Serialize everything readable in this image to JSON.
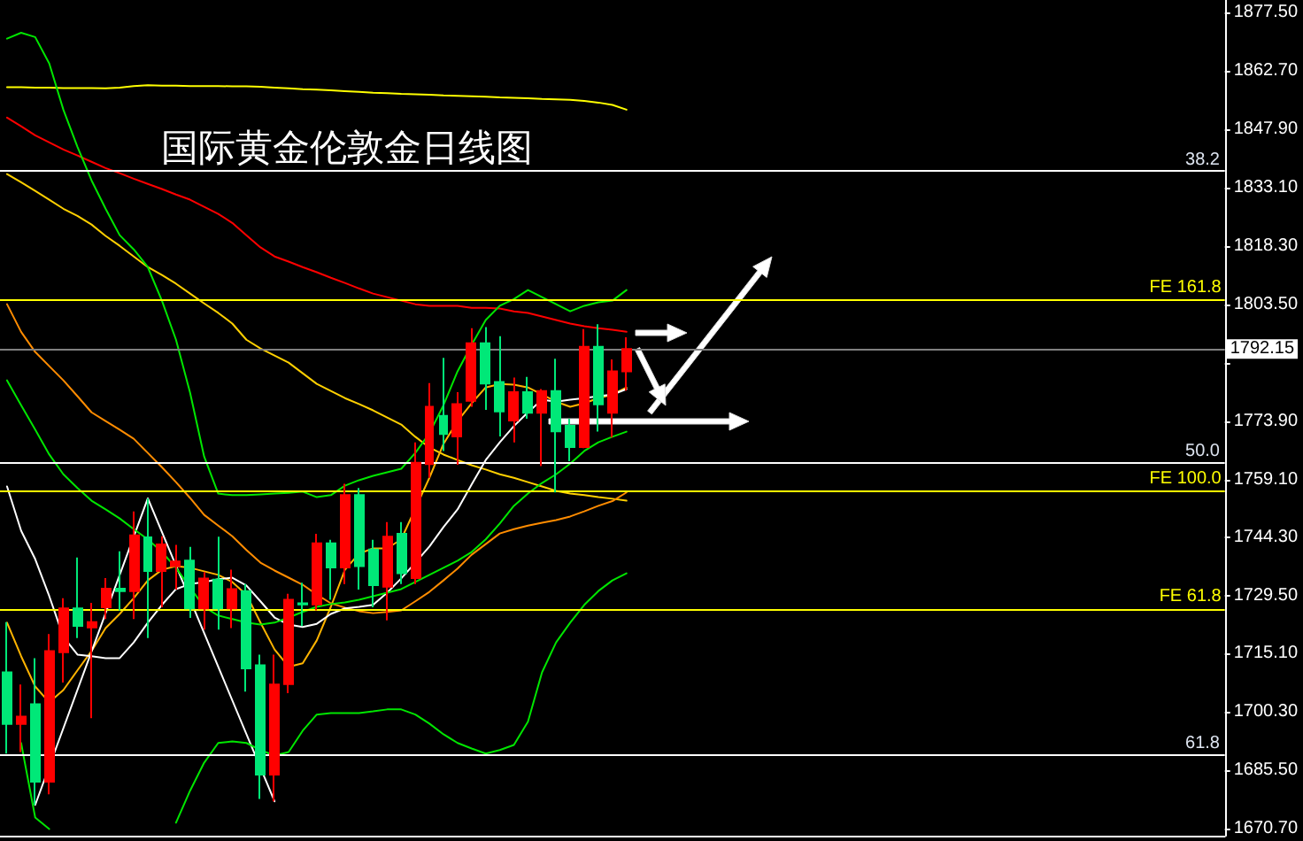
{
  "chart_data": {
    "type": "candlestick",
    "title": "国际黄金伦敦金日线图",
    "categories": [
      null,
      null,
      null,
      null,
      null,
      null,
      null,
      null,
      null,
      null,
      null,
      null,
      null,
      null,
      null,
      null,
      null,
      null,
      null,
      null,
      null,
      null,
      null,
      null,
      null,
      null,
      null,
      null,
      null,
      null,
      null,
      null,
      null,
      null,
      null,
      null,
      null,
      null,
      null,
      null,
      null,
      null,
      null,
      null,
      null,
      null,
      null,
      null,
      null,
      null,
      null,
      null,
      null,
      null,
      null,
      null,
      null,
      null,
      null,
      null,
      null,
      null,
      null,
      null,
      null,
      null,
      null,
      null,
      null,
      null,
      null,
      null,
      null,
      null,
      null,
      null,
      null,
      null,
      null,
      null,
      null,
      null,
      null,
      null,
      null,
      null,
      null
    ],
    "ohlc": [
      [
        1710.2,
        1722.9,
        1689.6,
        1697.1
      ],
      [
        1697.1,
        1707.1,
        1690.0,
        1699.0
      ],
      [
        1702.1,
        1713.8,
        1676.6,
        1682.5
      ],
      [
        1682.5,
        1719.9,
        1679.3,
        1715.6
      ],
      [
        1715.3,
        1729.0,
        1707.6,
        1726.4
      ],
      [
        1726.4,
        1739.3,
        1718.9,
        1722.0
      ],
      [
        1721.6,
        1727.8,
        1698.6,
        1722.9
      ],
      [
        1726.7,
        1734.1,
        1723.7,
        1731.4
      ],
      [
        1731.4,
        1740.9,
        1725.9,
        1730.8
      ],
      [
        1730.8,
        1751.0,
        1723.7,
        1744.9
      ],
      [
        1744.4,
        1754.3,
        1718.9,
        1735.9
      ],
      [
        1735.9,
        1744.7,
        1726.7,
        1742.6
      ],
      [
        1737.1,
        1742.5,
        1731.2,
        1738.3
      ],
      [
        1738.5,
        1742.0,
        1724.0,
        1726.4
      ],
      [
        1726.4,
        1735.6,
        1721.0,
        1734.0
      ],
      [
        1733.7,
        1744.6,
        1721.0,
        1726.4
      ],
      [
        1726.4,
        1736.2,
        1721.4,
        1731.3
      ],
      [
        1730.8,
        1732.6,
        1705.3,
        1711.2
      ],
      [
        1712.0,
        1714.7,
        1678.1,
        1684.3
      ],
      [
        1684.3,
        1714.7,
        1677.5,
        1707.1
      ],
      [
        1707.2,
        1730.1,
        1704.9,
        1728.6
      ],
      [
        1727.7,
        1732.9,
        1721.9,
        1727.4
      ],
      [
        1727.4,
        1745.3,
        1725.9,
        1742.9
      ],
      [
        1742.9,
        1743.8,
        1728.6,
        1736.8
      ],
      [
        1736.8,
        1758.0,
        1732.6,
        1755.1
      ],
      [
        1755.1,
        1756.9,
        1731.2,
        1737.1
      ],
      [
        1741.3,
        1743.8,
        1726.7,
        1732.3
      ],
      [
        1731.9,
        1748.3,
        1723.4,
        1744.6
      ],
      [
        1745.3,
        1748.3,
        1732.6,
        1735.3
      ],
      [
        1734.1,
        1768.5,
        1732.6,
        1763.3
      ],
      [
        1763.0,
        1783.5,
        1759.5,
        1777.5
      ],
      [
        1775.2,
        1789.9,
        1766.3,
        1770.6
      ],
      [
        1770.0,
        1781.2,
        1762.8,
        1778.2
      ],
      [
        1779.0,
        1797.4,
        1777.5,
        1793.6
      ],
      [
        1793.6,
        1797.7,
        1776.7,
        1783.4
      ],
      [
        1783.8,
        1795.4,
        1770.0,
        1776.3
      ],
      [
        1774.0,
        1784.9,
        1768.5,
        1781.2
      ],
      [
        1781.2,
        1785.1,
        1774.5,
        1776.0
      ],
      [
        1776.0,
        1782.0,
        1762.5,
        1781.5
      ],
      [
        1781.5,
        1789.7,
        1755.8,
        1771.3
      ],
      [
        1772.7,
        1774.5,
        1763.7,
        1767.3
      ],
      [
        1767.3,
        1797.2,
        1767.0,
        1792.7
      ],
      [
        1792.7,
        1798.4,
        1771.2,
        1778.1
      ],
      [
        1776.0,
        1789.5,
        1769.7,
        1786.5
      ],
      [
        1786.5,
        1795.1,
        1781.6,
        1792.15
      ],
      null,
      null,
      null,
      null,
      null,
      null,
      null,
      null,
      null,
      null,
      null,
      null,
      null,
      null,
      null,
      null,
      null,
      null,
      null,
      null,
      null,
      null,
      null,
      null,
      null,
      null,
      null,
      null,
      null,
      null,
      null,
      null,
      null,
      null,
      null,
      null,
      null,
      null,
      null,
      null,
      null,
      null
    ],
    "colors": [
      "#00e878",
      "#ff0000",
      "#00e878",
      "#ff0000",
      "#ff0000",
      "#00e878",
      "#ff0000",
      "#ff0000",
      "#00e878",
      "#ff0000",
      "#00e878",
      "#ff0000",
      "#ff0000",
      "#00e878",
      "#ff0000",
      "#00e878",
      "#ff0000",
      "#00e878",
      "#00e878",
      "#ff0000",
      "#ff0000",
      "#00e878",
      "#ff0000",
      "#00e878",
      "#ff0000",
      "#00e878",
      "#00e878",
      "#ff0000",
      "#00e878",
      "#ff0000",
      "#ff0000",
      "#00e878",
      "#ff0000",
      "#ff0000",
      "#00e878",
      "#00e878",
      "#ff0000",
      "#00e878",
      "#ff0000",
      "#00e878",
      "#00e878",
      "#ff0000",
      "#00e878",
      "#ff0000",
      "#ff0000",
      null,
      null,
      null,
      null,
      null,
      null,
      null,
      null,
      null,
      null,
      null,
      null,
      null,
      null,
      null,
      null,
      null,
      null,
      null,
      null,
      null,
      null,
      null,
      null,
      null,
      null,
      null,
      null,
      null,
      null,
      null,
      null,
      null,
      null,
      null,
      null,
      null,
      null,
      null,
      null,
      null,
      null
    ],
    "series": [
      {
        "type": "line",
        "color": "#ffff00",
        "values": [
          1858.5,
          1858.5,
          1858.4,
          1858.4,
          1858.3,
          1858.3,
          1858.3,
          1858.2,
          1858.4,
          1858.8,
          1859.0,
          1858.9,
          1858.9,
          1858.8,
          1858.8,
          1858.8,
          1858.7,
          1858.7,
          1858.6,
          1858.4,
          1858.2,
          1858.0,
          1857.9,
          1857.7,
          1857.5,
          1857.3,
          1857.1,
          1857.0,
          1856.8,
          1856.7,
          1856.6,
          1856.4,
          1856.3,
          1856.2,
          1856.1,
          1855.9,
          1855.8,
          1855.7,
          1855.5,
          1855.4,
          1855.3,
          1855.0,
          1854.6,
          1854.0,
          1852.8,
          null,
          null,
          null,
          null,
          null,
          null,
          null,
          null,
          null,
          null,
          null,
          null,
          null,
          null,
          null,
          null,
          null,
          null,
          null,
          null,
          null,
          null,
          null,
          null,
          null,
          null,
          null,
          null,
          null,
          null,
          null,
          null,
          null,
          null,
          null,
          null,
          null,
          null,
          null,
          null,
          null,
          null
        ]
      },
      {
        "type": "line",
        "color": "#ff0000",
        "values": [
          1850.8,
          1848.6,
          1846.3,
          1844.5,
          1842.7,
          1841.2,
          1839.6,
          1838.0,
          1836.7,
          1835.3,
          1834.0,
          1832.7,
          1831.3,
          1830.0,
          1828.2,
          1826.4,
          1824.1,
          1821.0,
          1817.9,
          1815.6,
          1814.3,
          1812.9,
          1811.6,
          1810.2,
          1808.9,
          1807.5,
          1806.2,
          1805.3,
          1804.4,
          1803.5,
          1803.1,
          1803.1,
          1803.1,
          1802.6,
          1802.6,
          1802.4,
          1801.7,
          1801.3,
          1800.4,
          1799.5,
          1798.6,
          1797.9,
          1797.4,
          1797.0,
          1796.5,
          null,
          null,
          null,
          null,
          null,
          null,
          null,
          null,
          null,
          null,
          null,
          null,
          null,
          null,
          null,
          null,
          null,
          null,
          null,
          null,
          null,
          null,
          null,
          null,
          null,
          null,
          null,
          null,
          null,
          null,
          null,
          null,
          null,
          null,
          null,
          null,
          null,
          null,
          null,
          null,
          null,
          null
        ]
      },
      {
        "type": "line",
        "color": "#ffd000",
        "values": [
          1836.5,
          1834.4,
          1832.2,
          1830.0,
          1827.7,
          1825.9,
          1823.7,
          1820.8,
          1818.3,
          1815.6,
          1812.9,
          1810.9,
          1808.7,
          1806.2,
          1803.7,
          1801.3,
          1798.6,
          1794.5,
          1792.3,
          1790.5,
          1788.7,
          1786.0,
          1783.3,
          1781.5,
          1779.7,
          1778.2,
          1776.6,
          1774.8,
          1773.0,
          1769.9,
          1767.2,
          1765.4,
          1764.0,
          1762.7,
          1761.6,
          1760.4,
          1759.5,
          1758.4,
          1757.3,
          1756.2,
          1755.5,
          1755.1,
          1754.6,
          1754.2,
          1753.7,
          null,
          null,
          null,
          null,
          null,
          null,
          null,
          null,
          null,
          null,
          null,
          null,
          null,
          null,
          null,
          null,
          null,
          null,
          null,
          null,
          null,
          null,
          null,
          null,
          null,
          null,
          null,
          null,
          null,
          null,
          null,
          null,
          null,
          null,
          null,
          null,
          null,
          null,
          null,
          null,
          null,
          null
        ]
      },
      {
        "type": "line",
        "color": "#ff8c00",
        "values": [
          1803.5,
          1796.5,
          1791.4,
          1787.8,
          1784.2,
          1780.2,
          1776.1,
          1773.9,
          1771.7,
          1769.4,
          1765.8,
          1762.2,
          1758.4,
          1754.4,
          1750.1,
          1747.4,
          1744.7,
          1741.2,
          1738.0,
          1736.0,
          1734.2,
          1732.4,
          1729.9,
          1727.7,
          1726.6,
          1725.7,
          1725.2,
          1725.5,
          1725.9,
          1728.2,
          1730.6,
          1733.5,
          1736.5,
          1740.0,
          1742.7,
          1745.4,
          1746.5,
          1747.4,
          1748.1,
          1748.8,
          1749.7,
          1751.0,
          1752.4,
          1753.6,
          1755.8,
          null,
          null,
          null,
          null,
          null,
          null,
          null,
          null,
          null,
          null,
          null,
          null,
          null,
          null,
          null,
          null,
          null,
          null,
          null,
          null,
          null,
          null,
          null,
          null,
          null,
          null,
          null,
          null,
          null,
          null,
          null,
          null,
          null,
          null,
          null,
          null,
          null,
          null,
          null,
          null,
          null,
          null
        ]
      },
      {
        "type": "line",
        "color": "#ffb400",
        "values": [
          1722.8,
          1714.3,
          1706.6,
          1702.6,
          1705.7,
          1710.7,
          1715.6,
          1721.4,
          1725.0,
          1729.0,
          1733.5,
          1736.2,
          1737.1,
          1736.7,
          1735.8,
          1734.9,
          1733.1,
          1729.9,
          1722.8,
          1716.0,
          1711.6,
          1712.5,
          1718.3,
          1726.8,
          1736.2,
          1740.3,
          1741.6,
          1741.6,
          1743.9,
          null,
          1759.5,
          1768.1,
          1773.9,
          1778.4,
          1782.4,
          1783.3,
          1783.1,
          1782.4,
          1780.6,
          1778.8,
          1777.5,
          1778.4,
          1779.7,
          1780.6,
          1782.4,
          null,
          null,
          null,
          null,
          null,
          null,
          null,
          null,
          null,
          null,
          null,
          null,
          null,
          null,
          null,
          null,
          null,
          null,
          null,
          null,
          null,
          null,
          null,
          null,
          null,
          null,
          null,
          null,
          null,
          null,
          null,
          null,
          null,
          null,
          null,
          null,
          null,
          null,
          null,
          null,
          null,
          null
        ]
      },
      {
        "type": "line",
        "color": "#ffffff",
        "values": [
          1757.3,
          1746.1,
          1738.9,
          1729.5,
          1719.2,
          1714.7,
          1714.3,
          1713.8,
          1713.8,
          1717.8,
          1722.8,
          1727.3,
          1731.3,
          1732.6,
          1733.1,
          1733.8,
          1734.2,
          1732.2,
          1728.2,
          1724.1,
          1722.3,
          1721.7,
          1722.5,
          1725.0,
          1726.4,
          1726.8,
          1727.3,
          1730.4,
          1734.0,
          1738.0,
          1742.1,
          1747.0,
          1751.5,
          1757.8,
          1764.0,
          1768.5,
          1772.6,
          1776.1,
          1779.3,
          1778.8,
          1779.3,
          1779.7,
          1780.2,
          1780.6,
          1782.0,
          null,
          null,
          null,
          null,
          null,
          null,
          null,
          null,
          null,
          null,
          null,
          null,
          null,
          null,
          null,
          null,
          null,
          null,
          null,
          null,
          null,
          null,
          null,
          null,
          null,
          null,
          null,
          null,
          null,
          null,
          null,
          null,
          null,
          null,
          null,
          null,
          null,
          null,
          null,
          null,
          null,
          null
        ]
      },
      {
        "type": "line",
        "color": "#ffffff",
        "values": [
          null,
          null,
          1676.6,
          null,
          null,
          null,
          null,
          null,
          null,
          null,
          1754.3,
          null,
          null,
          null,
          null,
          null,
          null,
          null,
          null,
          1677.5,
          null,
          null,
          null,
          null,
          null,
          null,
          null,
          null,
          null,
          null,
          null,
          null,
          null,
          null,
          null,
          null,
          null,
          null,
          null,
          null,
          null,
          null,
          null,
          null,
          null,
          null,
          null,
          null,
          null,
          null,
          null,
          null,
          null,
          null,
          null,
          null,
          null,
          null,
          null,
          null,
          null,
          null,
          null,
          null,
          null,
          null,
          null,
          null,
          null,
          null,
          null,
          null,
          null,
          null,
          null,
          null,
          null,
          null,
          null,
          null,
          null,
          null,
          null,
          null,
          null,
          null,
          null
        ]
      },
      {
        "type": "line",
        "color": "#00e600",
        "values": [
          1870.8,
          1872.3,
          1871.2,
          1864.5,
          1852.8,
          1843.4,
          1834.9,
          1827.7,
          1821.0,
          1817.4,
          1812.9,
          1804.4,
          1794.5,
          1781.1,
          1764.9,
          1755.5,
          1755.1,
          1755.1,
          1755.3,
          1755.5,
          1755.7,
          1756.0,
          1754.6,
          1755.1,
          1757.5,
          1758.9,
          1760.0,
          1760.9,
          1761.8,
          1765.8,
          1770.8,
          1777.9,
          1786.5,
          1793.2,
          1799.5,
          1803.1,
          1804.8,
          1807.1,
          1805.3,
          1803.5,
          1801.7,
          1803.1,
          1804.0,
          1804.4,
          1807.1,
          null,
          null,
          null,
          null,
          null,
          null,
          null,
          null,
          null,
          null,
          null,
          null,
          null,
          null,
          null,
          null,
          null,
          null,
          null,
          null,
          null,
          null,
          null,
          null,
          null,
          null,
          null,
          null,
          null,
          null,
          null,
          null,
          null,
          null,
          null,
          null,
          null,
          null,
          null,
          null,
          null,
          null
        ]
      },
      {
        "type": "line",
        "color": "#00e600",
        "values": [
          1784.2,
          1777.9,
          1771.7,
          1765.4,
          1760.4,
          1756.9,
          1753.7,
          1751.5,
          1749.2,
          1746.5,
          1743.9,
          1740.7,
          1736.7,
          1731.7,
          1726.8,
          1724.6,
          1723.7,
          1722.8,
          1722.3,
          1722.8,
          1724.1,
          1725.5,
          1726.8,
          1727.5,
          1727.9,
          1728.6,
          1729.5,
          1730.4,
          1731.3,
          1733.1,
          1734.9,
          1736.7,
          1738.5,
          1740.7,
          1743.9,
          1747.9,
          1752.4,
          1755.5,
          1758.2,
          1760.4,
          1763.1,
          1766.3,
          1768.5,
          1769.9,
          1771.2,
          null,
          null,
          null,
          null,
          null,
          null,
          null,
          null,
          null,
          null,
          null,
          null,
          null,
          null,
          null,
          null,
          null,
          null,
          null,
          null,
          null,
          null,
          null,
          null,
          null,
          null,
          null,
          null,
          null,
          null,
          null,
          null,
          null,
          null,
          null,
          null,
          null,
          null,
          null,
          null,
          null,
          null
        ]
      },
      {
        "type": "line",
        "color": "#00e600",
        "values": [
          null,
          1692.3,
          1673.4,
          1670.5,
          null,
          null,
          null,
          null,
          null,
          null,
          null,
          null,
          null,
          null,
          null,
          null,
          null,
          null,
          null,
          null,
          null,
          null,
          null,
          null,
          null,
          null,
          null,
          null,
          null,
          null,
          null,
          null,
          null,
          null,
          null,
          null,
          null,
          null,
          null,
          null,
          null,
          null,
          null,
          null,
          null,
          null,
          null,
          null,
          null,
          null,
          null,
          null,
          null,
          null,
          null,
          null,
          null,
          null,
          null,
          null,
          null,
          null,
          null,
          null,
          null,
          null,
          null,
          null,
          null,
          null,
          null,
          null,
          null,
          null,
          null,
          null,
          null,
          null,
          null,
          null,
          null,
          null,
          null,
          null,
          null,
          null,
          null
        ]
      },
      {
        "type": "line",
        "color": "#00e600",
        "values": [
          null,
          null,
          null,
          null,
          null,
          null,
          null,
          null,
          null,
          null,
          null,
          null,
          1672.1,
          1680.2,
          1687.3,
          1692.3,
          1692.7,
          1692.3,
          1690.5,
          1689.1,
          1690.0,
          1695.4,
          1699.5,
          1699.9,
          1699.9,
          1699.9,
          1700.3,
          1700.8,
          1700.8,
          1699.5,
          1697.2,
          1694.5,
          1692.3,
          1690.9,
          1689.6,
          1690.5,
          1691.8,
          1697.7,
          1710.2,
          1717.8,
          1722.8,
          1727.3,
          1730.8,
          1733.5,
          1735.3,
          null,
          null,
          null,
          null,
          null,
          null,
          null,
          null,
          null,
          null,
          null,
          null,
          null,
          null,
          null,
          null,
          null,
          null,
          null,
          null,
          null,
          null,
          null,
          null,
          null,
          null,
          null,
          null,
          null,
          null,
          null,
          null,
          null,
          null,
          null,
          null,
          null,
          null,
          null,
          null,
          null,
          null
        ]
      }
    ],
    "ylim": [
      1668.8,
      1880.6
    ],
    "yticks": [
      {
        "value": 1670.7,
        "label": "1670.70"
      },
      {
        "value": 1685.5,
        "label": "1685.50"
      },
      {
        "value": 1700.3,
        "label": "1700.30"
      },
      {
        "value": 1715.1,
        "label": "1715.10"
      },
      {
        "value": 1729.5,
        "label": "1729.50"
      },
      {
        "value": 1744.3,
        "label": "1744.30"
      },
      {
        "value": 1759.1,
        "label": "1759.10"
      },
      {
        "value": 1773.9,
        "label": "1773.90"
      },
      {
        "value": 1788.7,
        "label": null
      },
      {
        "value": 1803.5,
        "label": "1803.50"
      },
      {
        "value": 1818.3,
        "label": "1818.30"
      },
      {
        "value": 1833.1,
        "label": "1833.10"
      },
      {
        "value": 1847.9,
        "label": "1847.90"
      },
      {
        "value": 1862.7,
        "label": "1862.70"
      },
      {
        "value": 1877.5,
        "label": "1877.50"
      }
    ],
    "ref_lines": [
      {
        "axis": "y",
        "value": 1837.3,
        "color": "#ffffff"
      },
      {
        "axis": "y",
        "value": 1804.6,
        "label": "FE 161.8",
        "color": "#ffff00"
      },
      {
        "axis": "y",
        "value": 1792.15,
        "label": "1792.15",
        "color": "#808080"
      },
      {
        "axis": "y",
        "value": 1763.4,
        "color": "#ffffff"
      },
      {
        "axis": "y",
        "value": 1756.1,
        "label": "FE 100.0",
        "color": "#ffff00"
      },
      {
        "axis": "y",
        "value": 1726.2,
        "label": "FE 61.8",
        "color": "#ffff00"
      },
      {
        "axis": "y",
        "value": 1689.4,
        "color": "#ffffff"
      }
    ],
    "annotations": [
      {
        "text": "38.2",
        "y": 1837.3
      },
      {
        "text": "50.0",
        "y": 1763.4
      },
      {
        "text": "61.8",
        "y": 1689.4
      }
    ],
    "tick_labels": "y"
  }
}
